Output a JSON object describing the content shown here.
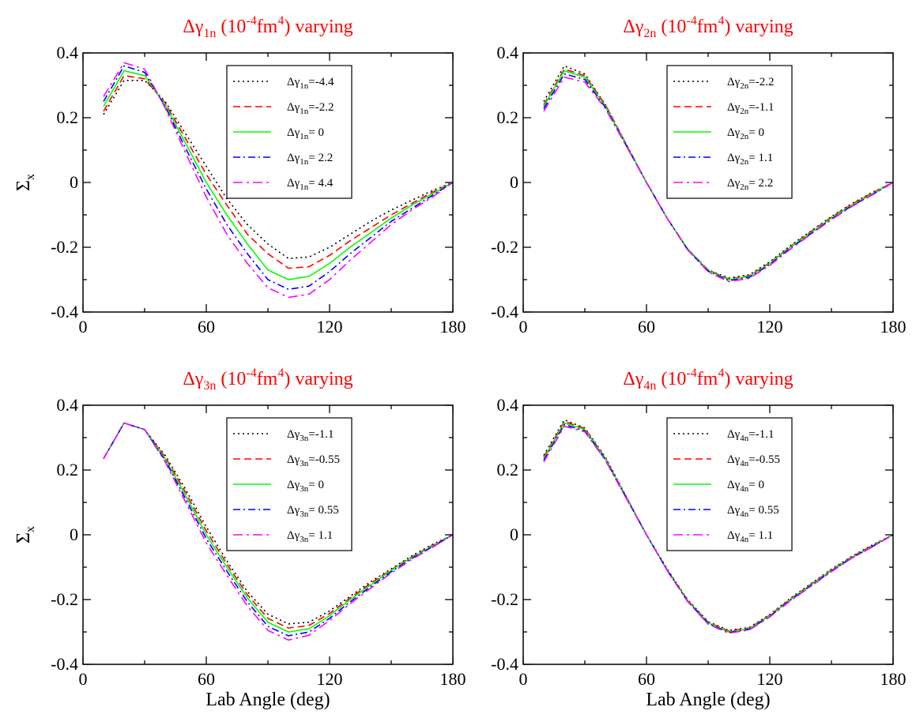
{
  "chart_data": [
    {
      "type": "line",
      "title": {
        "prefix": "Δγ",
        "sub": "1n",
        "mid": " (10",
        "sup1": "-4",
        "unit": "fm",
        "sup2": "4",
        "suffix": ") varying"
      },
      "xlabel": "",
      "ylabel": {
        "main": "Σ",
        "sub": "x"
      },
      "xlim": [
        0,
        180
      ],
      "ylim": [
        -0.4,
        0.4
      ],
      "xticks": [
        "0",
        "60",
        "120",
        "180"
      ],
      "yticks": [
        "-0.4",
        "-0.2",
        "0",
        "0.2",
        "0.4"
      ],
      "legend_position": "top-right",
      "x": [
        10,
        20,
        30,
        40,
        50,
        60,
        70,
        80,
        90,
        100,
        110,
        120,
        130,
        140,
        150,
        160,
        170,
        180
      ],
      "series": [
        {
          "sym": "Δγ",
          "sub": "1n",
          "val": "=-4.4",
          "color": "#000000",
          "dash": "dot",
          "values": [
            0.21,
            0.315,
            0.315,
            0.25,
            0.15,
            0.05,
            -0.05,
            -0.13,
            -0.19,
            -0.235,
            -0.23,
            -0.2,
            -0.16,
            -0.12,
            -0.085,
            -0.055,
            -0.025,
            0.0
          ]
        },
        {
          "sym": "Δγ",
          "sub": "1n",
          "val": "=-2.2",
          "color": "#ff0000",
          "dash": "dash",
          "values": [
            0.22,
            0.33,
            0.32,
            0.245,
            0.135,
            0.025,
            -0.07,
            -0.16,
            -0.22,
            -0.265,
            -0.26,
            -0.225,
            -0.18,
            -0.14,
            -0.1,
            -0.065,
            -0.03,
            0.0
          ]
        },
        {
          "sym": "Δγ",
          "sub": "1n",
          "val": "= 0",
          "color": "#00ff00",
          "dash": "solid",
          "values": [
            0.235,
            0.345,
            0.33,
            0.24,
            0.12,
            0.0,
            -0.1,
            -0.19,
            -0.27,
            -0.3,
            -0.29,
            -0.25,
            -0.2,
            -0.155,
            -0.11,
            -0.07,
            -0.035,
            0.0
          ]
        },
        {
          "sym": "Δγ",
          "sub": "1n",
          "val": "= 2.2",
          "color": "#0000ff",
          "dash": "dashdot",
          "values": [
            0.25,
            0.36,
            0.34,
            0.235,
            0.105,
            -0.02,
            -0.13,
            -0.22,
            -0.3,
            -0.33,
            -0.32,
            -0.275,
            -0.22,
            -0.17,
            -0.12,
            -0.08,
            -0.04,
            0.0
          ]
        },
        {
          "sym": "Δγ",
          "sub": "1n",
          "val": "= 4.4",
          "color": "#ff00ff",
          "dash": "dashdot2",
          "values": [
            0.265,
            0.37,
            0.35,
            0.23,
            0.09,
            -0.045,
            -0.16,
            -0.25,
            -0.325,
            -0.355,
            -0.345,
            -0.3,
            -0.24,
            -0.185,
            -0.13,
            -0.085,
            -0.045,
            0.0
          ]
        }
      ]
    },
    {
      "type": "line",
      "title": {
        "prefix": "Δγ",
        "sub": "2n",
        "mid": " (10",
        "sup1": "-4",
        "unit": "fm",
        "sup2": "4",
        "suffix": ") varying"
      },
      "xlabel": "",
      "ylabel": null,
      "xlim": [
        0,
        180
      ],
      "ylim": [
        -0.4,
        0.4
      ],
      "xticks": [
        "0",
        "60",
        "120",
        "180"
      ],
      "yticks": [
        "-0.4",
        "-0.2",
        "0",
        "0.2",
        "0.4"
      ],
      "legend_position": "top-right",
      "x": [
        10,
        20,
        30,
        40,
        50,
        60,
        70,
        80,
        90,
        100,
        110,
        120,
        130,
        140,
        150,
        160,
        170,
        180
      ],
      "series": [
        {
          "sym": "Δγ",
          "sub": "2n",
          "val": "=-2.2",
          "color": "#000000",
          "dash": "dot",
          "values": [
            0.25,
            0.36,
            0.335,
            0.24,
            0.12,
            0.0,
            -0.11,
            -0.205,
            -0.27,
            -0.295,
            -0.285,
            -0.245,
            -0.195,
            -0.15,
            -0.105,
            -0.065,
            -0.03,
            0.0
          ]
        },
        {
          "sym": "Δγ",
          "sub": "2n",
          "val": "=-1.1",
          "color": "#ff0000",
          "dash": "dash",
          "values": [
            0.24,
            0.35,
            0.33,
            0.24,
            0.12,
            0.0,
            -0.11,
            -0.205,
            -0.27,
            -0.298,
            -0.288,
            -0.248,
            -0.198,
            -0.152,
            -0.107,
            -0.067,
            -0.032,
            0.0
          ]
        },
        {
          "sym": "Δγ",
          "sub": "2n",
          "val": "= 0",
          "color": "#00ff00",
          "dash": "solid",
          "values": [
            0.235,
            0.345,
            0.325,
            0.235,
            0.118,
            0.0,
            -0.11,
            -0.205,
            -0.272,
            -0.3,
            -0.29,
            -0.25,
            -0.2,
            -0.155,
            -0.11,
            -0.07,
            -0.035,
            0.0
          ]
        },
        {
          "sym": "Δγ",
          "sub": "2n",
          "val": "= 1.1",
          "color": "#0000ff",
          "dash": "dashdot",
          "values": [
            0.228,
            0.335,
            0.318,
            0.232,
            0.116,
            0.0,
            -0.11,
            -0.207,
            -0.274,
            -0.303,
            -0.293,
            -0.253,
            -0.203,
            -0.158,
            -0.113,
            -0.072,
            -0.037,
            0.0
          ]
        },
        {
          "sym": "Δγ",
          "sub": "2n",
          "val": "= 2.2",
          "color": "#ff00ff",
          "dash": "dashdot2",
          "values": [
            0.22,
            0.325,
            0.31,
            0.228,
            0.114,
            0.0,
            -0.11,
            -0.208,
            -0.276,
            -0.306,
            -0.296,
            -0.256,
            -0.206,
            -0.16,
            -0.115,
            -0.074,
            -0.038,
            0.0
          ]
        }
      ]
    },
    {
      "type": "line",
      "title": {
        "prefix": "Δγ",
        "sub": "3n",
        "mid": " (10",
        "sup1": "-4",
        "unit": "fm",
        "sup2": "4",
        "suffix": ") varying"
      },
      "xlabel": "Lab Angle (deg)",
      "ylabel": {
        "main": "Σ",
        "sub": "x"
      },
      "xlim": [
        0,
        180
      ],
      "ylim": [
        -0.4,
        0.4
      ],
      "xticks": [
        "0",
        "60",
        "120",
        "180"
      ],
      "yticks": [
        "-0.4",
        "-0.2",
        "0",
        "0.2",
        "0.4"
      ],
      "legend_position": "top-right",
      "x": [
        10,
        20,
        30,
        40,
        50,
        60,
        70,
        80,
        90,
        100,
        110,
        120,
        130,
        140,
        150,
        160,
        170,
        180
      ],
      "series": [
        {
          "sym": "Δγ",
          "sub": "3n",
          "val": "=-1.1",
          "color": "#000000",
          "dash": "dot",
          "values": [
            0.235,
            0.345,
            0.325,
            0.245,
            0.14,
            0.025,
            -0.08,
            -0.175,
            -0.245,
            -0.275,
            -0.27,
            -0.235,
            -0.19,
            -0.145,
            -0.105,
            -0.065,
            -0.03,
            0.0
          ]
        },
        {
          "sym": "Δγ",
          "sub": "3n",
          "val": "=-0.55",
          "color": "#ff0000",
          "dash": "dash",
          "values": [
            0.235,
            0.345,
            0.325,
            0.24,
            0.13,
            0.012,
            -0.09,
            -0.185,
            -0.258,
            -0.288,
            -0.28,
            -0.243,
            -0.195,
            -0.15,
            -0.108,
            -0.068,
            -0.033,
            0.0
          ]
        },
        {
          "sym": "Δγ",
          "sub": "3n",
          "val": "= 0",
          "color": "#00ff00",
          "dash": "solid",
          "values": [
            0.235,
            0.345,
            0.325,
            0.235,
            0.12,
            0.0,
            -0.1,
            -0.195,
            -0.27,
            -0.3,
            -0.29,
            -0.25,
            -0.2,
            -0.155,
            -0.11,
            -0.07,
            -0.035,
            0.0
          ]
        },
        {
          "sym": "Δγ",
          "sub": "3n",
          "val": "= 0.55",
          "color": "#0000ff",
          "dash": "dashdot",
          "values": [
            0.235,
            0.345,
            0.325,
            0.23,
            0.11,
            -0.012,
            -0.112,
            -0.207,
            -0.283,
            -0.312,
            -0.3,
            -0.258,
            -0.207,
            -0.16,
            -0.114,
            -0.073,
            -0.037,
            0.0
          ]
        },
        {
          "sym": "Δγ",
          "sub": "3n",
          "val": "= 1.1",
          "color": "#ff00ff",
          "dash": "dashdot2",
          "values": [
            0.235,
            0.345,
            0.325,
            0.225,
            0.1,
            -0.025,
            -0.125,
            -0.22,
            -0.295,
            -0.325,
            -0.31,
            -0.265,
            -0.213,
            -0.165,
            -0.118,
            -0.076,
            -0.039,
            0.0
          ]
        }
      ]
    },
    {
      "type": "line",
      "title": {
        "prefix": "Δγ",
        "sub": "4n",
        "mid": " (10",
        "sup1": "-4",
        "unit": "fm",
        "sup2": "4",
        "suffix": ") varying"
      },
      "xlabel": "Lab Angle (deg)",
      "ylabel": null,
      "xlim": [
        0,
        180
      ],
      "ylim": [
        -0.4,
        0.4
      ],
      "xticks": [
        "0",
        "60",
        "120",
        "180"
      ],
      "yticks": [
        "-0.4",
        "-0.2",
        "0",
        "0.2",
        "0.4"
      ],
      "legend_position": "top-right",
      "x": [
        10,
        20,
        30,
        40,
        50,
        60,
        70,
        80,
        90,
        100,
        110,
        120,
        130,
        140,
        150,
        160,
        170,
        180
      ],
      "series": [
        {
          "sym": "Δγ",
          "sub": "4n",
          "val": "=-1.1",
          "color": "#000000",
          "dash": "dot",
          "values": [
            0.245,
            0.355,
            0.33,
            0.24,
            0.12,
            0.0,
            -0.105,
            -0.2,
            -0.268,
            -0.295,
            -0.286,
            -0.246,
            -0.196,
            -0.151,
            -0.106,
            -0.066,
            -0.031,
            0.0
          ]
        },
        {
          "sym": "Δγ",
          "sub": "4n",
          "val": "=-0.55",
          "color": "#ff0000",
          "dash": "dash",
          "values": [
            0.24,
            0.35,
            0.328,
            0.237,
            0.119,
            0.0,
            -0.107,
            -0.202,
            -0.27,
            -0.297,
            -0.288,
            -0.248,
            -0.198,
            -0.153,
            -0.108,
            -0.068,
            -0.033,
            0.0
          ]
        },
        {
          "sym": "Δγ",
          "sub": "4n",
          "val": "= 0",
          "color": "#00ff00",
          "dash": "solid",
          "values": [
            0.235,
            0.345,
            0.325,
            0.235,
            0.118,
            0.0,
            -0.108,
            -0.204,
            -0.272,
            -0.3,
            -0.29,
            -0.25,
            -0.2,
            -0.155,
            -0.11,
            -0.07,
            -0.035,
            0.0
          ]
        },
        {
          "sym": "Δγ",
          "sub": "4n",
          "val": "= 0.55",
          "color": "#0000ff",
          "dash": "dashdot",
          "values": [
            0.23,
            0.34,
            0.321,
            0.232,
            0.116,
            0.0,
            -0.109,
            -0.205,
            -0.274,
            -0.302,
            -0.292,
            -0.252,
            -0.202,
            -0.157,
            -0.112,
            -0.071,
            -0.036,
            0.0
          ]
        },
        {
          "sym": "Δγ",
          "sub": "4n",
          "val": "= 1.1",
          "color": "#ff00ff",
          "dash": "dashdot2",
          "values": [
            0.225,
            0.335,
            0.318,
            0.23,
            0.114,
            0.0,
            -0.11,
            -0.206,
            -0.276,
            -0.304,
            -0.294,
            -0.254,
            -0.204,
            -0.159,
            -0.114,
            -0.072,
            -0.037,
            0.0
          ]
        }
      ]
    }
  ]
}
